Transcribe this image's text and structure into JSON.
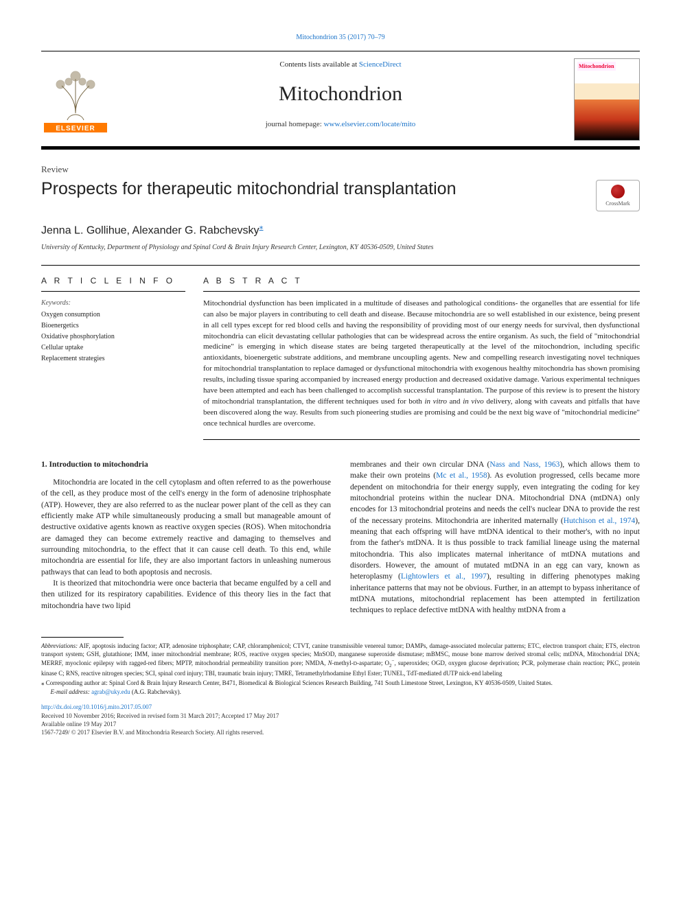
{
  "header": {
    "citation": "Mitochondrion 35 (2017) 70–79",
    "contents_prefix": "Contents lists available at ",
    "contents_link": "ScienceDirect",
    "journal_name": "Mitochondrion",
    "homepage_prefix": "journal homepage: ",
    "homepage_url": "www.elsevier.com/locate/mito",
    "cover_label": "Mitochondrion"
  },
  "article": {
    "type": "Review",
    "title": "Prospects for therapeutic mitochondrial transplantation",
    "authors_html": "Jenna L. Gollihue, Alexander G. Rabchevsky",
    "corr_mark": "⁎",
    "affiliation": "University of Kentucky, Department of Physiology and Spinal Cord & Brain Injury Research Center, Lexington, KY 40536-0509, United States",
    "crossmark": "CrossMark"
  },
  "info": {
    "head": "A R T I C L E  I N F O",
    "kw_label": "Keywords:",
    "keywords": [
      "Oxygen consumption",
      "Bioenergetics",
      "Oxidative phosphorylation",
      "Cellular uptake",
      "Replacement strategies"
    ]
  },
  "abstract": {
    "head": "A B S T R A C T",
    "text": "Mitochondrial dysfunction has been implicated in a multitude of diseases and pathological conditions- the organelles that are essential for life can also be major players in contributing to cell death and disease. Because mitochondria are so well established in our existence, being present in all cell types except for red blood cells and having the responsibility of providing most of our energy needs for survival, then dysfunctional mitochondria can elicit devastating cellular pathologies that can be widespread across the entire organism. As such, the field of \"mitochondrial medicine\" is emerging in which disease states are being targeted therapeutically at the level of the mitochondrion, including specific antioxidants, bioenergetic substrate additions, and membrane uncoupling agents. New and compelling research investigating novel techniques for mitochondrial transplantation to replace damaged or dysfunctional mitochondria with exogenous healthy mitochondria has shown promising results, including tissue sparing accompanied by increased energy production and decreased oxidative damage. Various experimental techniques have been attempted and each has been challenged to accomplish successful transplantation. The purpose of this review is to present the history of mitochondrial transplantation, the different techniques used for both in vitro and in vivo delivery, along with caveats and pitfalls that have been discovered along the way. Results from such pioneering studies are promising and could be the next big wave of \"mitochondrial medicine\" once technical hurdles are overcome."
  },
  "body": {
    "section1_head": "1. Introduction to mitochondria",
    "left_p1": "Mitochondria are located in the cell cytoplasm and often referred to as the powerhouse of the cell, as they produce most of the cell's energy in the form of adenosine triphosphate (ATP). However, they are also referred to as the nuclear power plant of the cell as they can efficiently make ATP while simultaneously producing a small but manageable amount of destructive oxidative agents known as reactive oxygen species (ROS). When mitochondria are damaged they can become extremely reactive and damaging to themselves and surrounding mitochondria, to the effect that it can cause cell death. To this end, while mitochondria are essential for life, they are also important factors in unleashing numerous pathways that can lead to both apoptosis and necrosis.",
    "left_p2": "It is theorized that mitochondria were once bacteria that became engulfed by a cell and then utilized for its respiratory capabilities. Evidence of this theory lies in the fact that mitochondria have two lipid",
    "right_p1_a": "membranes and their own circular DNA (",
    "right_ref1": "Nass and Nass, 1963",
    "right_p1_b": "), which allows them to make their own proteins (",
    "right_ref2": "Mc et al., 1958",
    "right_p1_c": "). As evolution progressed, cells became more dependent on mitochondria for their energy supply, even integrating the coding for key mitochondrial proteins within the nuclear DNA. Mitochondrial DNA (mtDNA) only encodes for 13 mitochondrial proteins and needs the cell's nuclear DNA to provide the rest of the necessary proteins. Mitochondria are inherited maternally (",
    "right_ref3": "Hutchison et al., 1974",
    "right_p1_d": "), meaning that each offspring will have mtDNA identical to their mother's, with no input from the father's mtDNA. It is thus possible to track familial lineage using the maternal mitochondria. This also implicates maternal inheritance of mtDNA mutations and disorders. However, the amount of mutated mtDNA in an egg can vary, known as heteroplasmy (",
    "right_ref4": "Lightowlers et al., 1997",
    "right_p1_e": "), resulting in differing phenotypes making inheritance patterns that may not be obvious. Further, in an attempt to bypass inheritance of mtDNA mutations, mitochondrial replacement has been attempted in fertilization techniques to replace defective mtDNA with healthy mtDNA from a"
  },
  "foot": {
    "abbrev_label": "Abbreviations:",
    "abbrev_text": " AIF, apoptosis inducing factor; ATP, adenosine triphosphate; CAP, chloramphenicol; CTVT, canine transmissible venereal tumor; DAMPs, damage-associated molecular patterns; ETC, electron transport chain; ETS, electron transport system; GSH, glutathione; IMM, inner mitochondrial membrane; ROS, reactive oxygen species; MnSOD, manganese superoxide dismutase; mBMSC, mouse bone marrow derived stromal cells; mtDNA, Mitochondrial DNA; MERRF, myoclonic epilepsy with ragged-red fibers; MPTP, mitochondrial permeability transition pore; NMDA, N-methyl-D-aspartate; O₂⁻, superoxides; OGD, oxygen glucose deprivation; PCR, polymerase chain reaction; PKC, protein kinase C; RNS, reactive nitrogen species; SCI, spinal cord injury; TBI, traumatic brain injury; TMRE, Tetramethylrhodamine Ethyl Ester; TUNEL, TdT-mediated dUTP nick-end labeling",
    "corr_label": "⁎ Corresponding author at:",
    "corr_text": " Spinal Cord & Brain Injury Research Center, B471, Biomedical & Biological Sciences Research Building, 741 South Limestone Street, Lexington, KY 40536-0509, United States.",
    "email_label": "E-mail address: ",
    "email": "agrab@uky.edu",
    "email_suffix": " (A.G. Rabchevsky).",
    "doi": "http://dx.doi.org/10.1016/j.mito.2017.05.007",
    "received": "Received 10 November 2016; Received in revised form 31 March 2017; Accepted 17 May 2017",
    "available": "Available online 19 May 2017",
    "copyright": "1567-7249/ © 2017 Elsevier B.V. and Mitochondria Research Society. All rights reserved."
  },
  "colors": {
    "link": "#1a73c9",
    "text": "#222222",
    "rule": "#000000"
  }
}
